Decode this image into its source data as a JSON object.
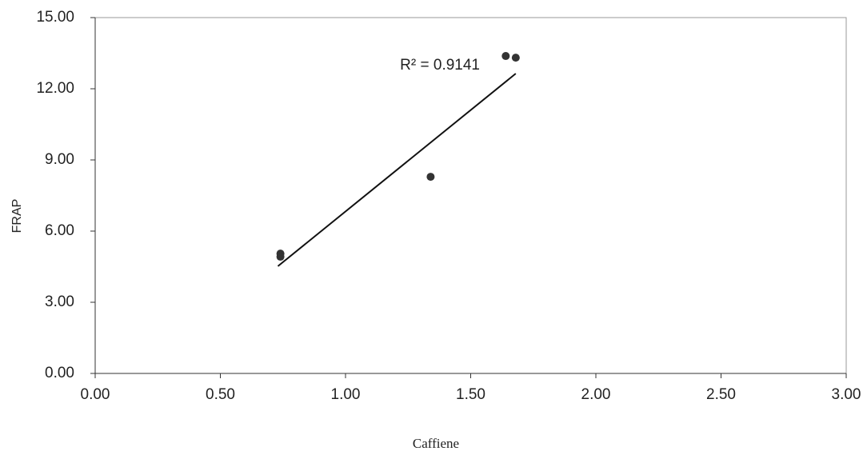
{
  "chart_data": {
    "type": "scatter",
    "xlabel": "Caffiene",
    "ylabel": "FRAP",
    "annotation": "R² = 0.9141",
    "series": [
      {
        "color": "#333333",
        "x": [
          0.74,
          0.74,
          1.34,
          1.64,
          1.68
        ],
        "values": [
          5.05,
          4.92,
          8.29,
          13.38,
          13.31
        ]
      }
    ],
    "trendline": {
      "color": "#111111",
      "x": [
        0.73,
        1.68
      ],
      "values": [
        4.52,
        12.64
      ]
    },
    "xlim": [
      0,
      3
    ],
    "ylim": [
      0,
      15
    ],
    "xticks": [
      {
        "value": 0,
        "label": "0.00"
      },
      {
        "value": 0.5,
        "label": "0.50"
      },
      {
        "value": 1,
        "label": "1.00"
      },
      {
        "value": 1.5,
        "label": "1.50"
      },
      {
        "value": 2,
        "label": "2.00"
      },
      {
        "value": 2.5,
        "label": "2.50"
      },
      {
        "value": 3,
        "label": "3.00"
      }
    ],
    "yticks": [
      {
        "value": 0,
        "label": "0.00"
      },
      {
        "value": 3,
        "label": "3.00"
      },
      {
        "value": 6,
        "label": "6.00"
      },
      {
        "value": 9,
        "label": "9.00"
      },
      {
        "value": 12,
        "label": "12.00"
      },
      {
        "value": 15,
        "label": "15.00"
      }
    ]
  }
}
